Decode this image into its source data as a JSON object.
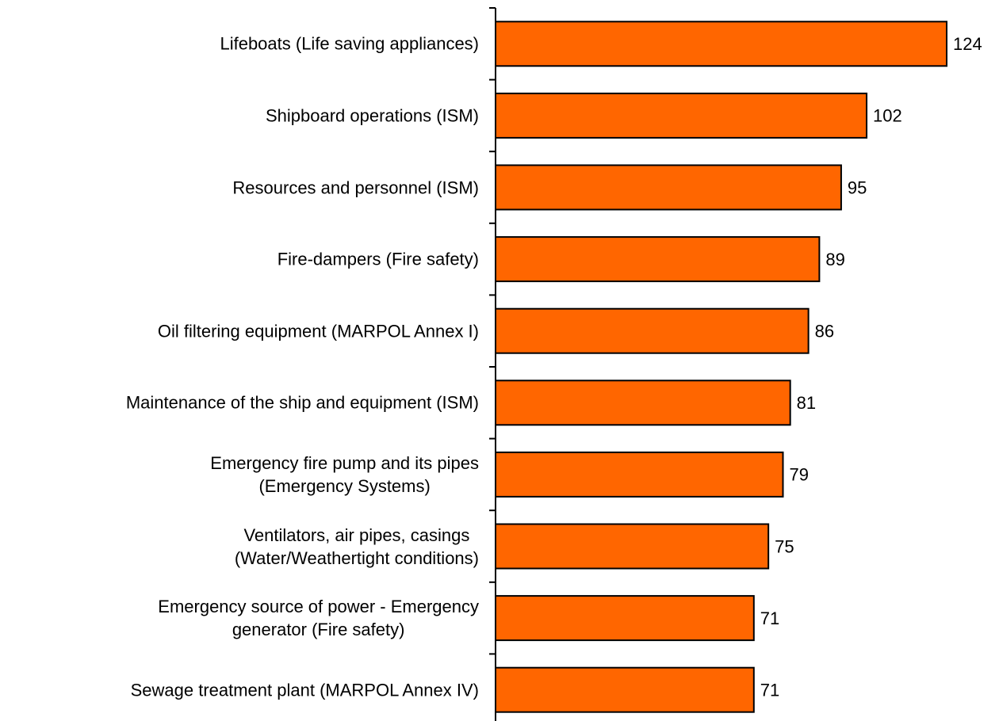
{
  "chart_data": {
    "type": "bar",
    "orientation": "horizontal",
    "categories": [
      "Lifeboats (Life saving appliances)",
      "Shipboard operations (ISM)",
      "Resources and personnel (ISM)",
      "Fire-dampers (Fire safety)",
      "Oil filtering equipment (MARPOL Annex I)",
      "Maintenance of the ship and equipment (ISM)",
      "Emergency fire pump and its pipes\n(Emergency Systems)",
      "Ventilators, air pipes, casings\n(Water/Weathertight conditions)",
      "Emergency source of power - Emergency\ngenerator (Fire safety)",
      "Sewage treatment plant (MARPOL Annex IV)"
    ],
    "values": [
      124,
      102,
      95,
      89,
      86,
      81,
      79,
      75,
      71,
      71
    ],
    "color": "#ff6600"
  }
}
